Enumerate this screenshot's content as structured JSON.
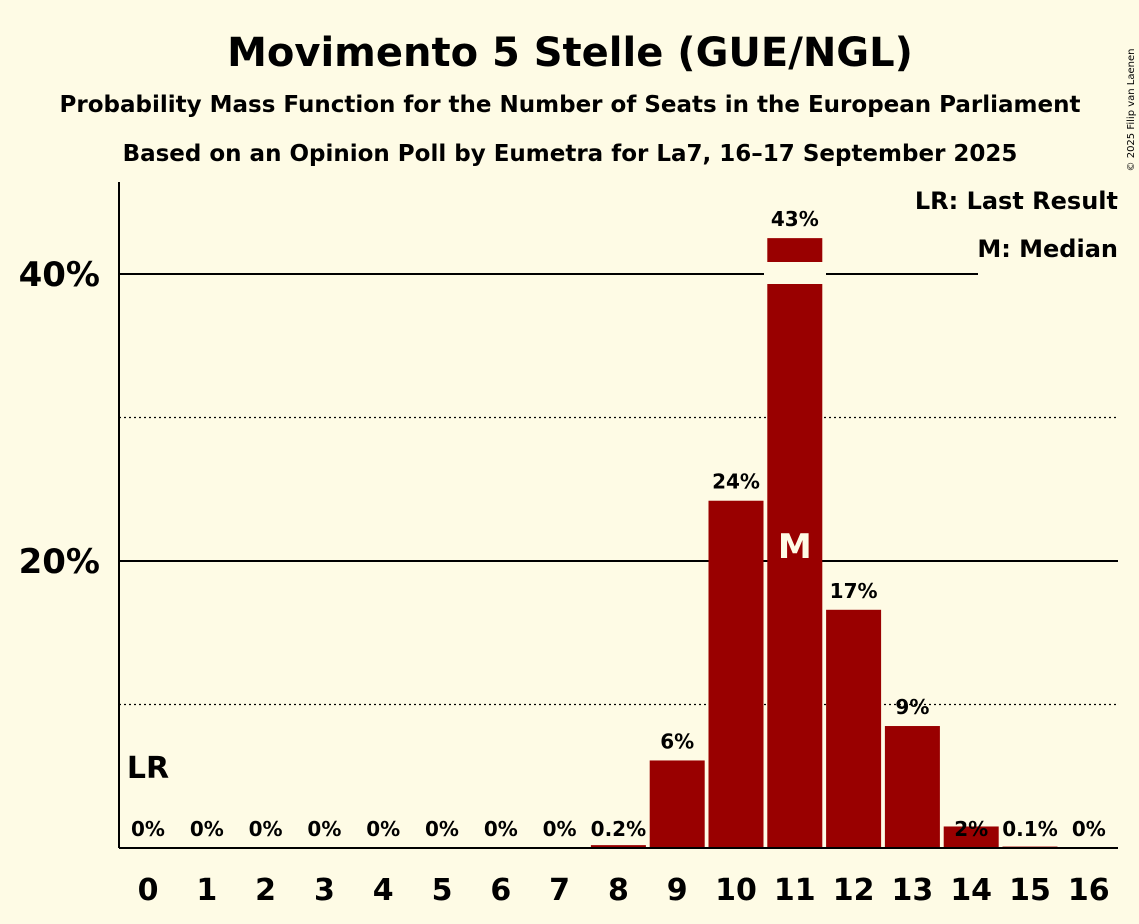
{
  "chart_data": {
    "type": "bar",
    "title": "Movimento 5 Stelle (GUE/NGL)",
    "subtitle": "Probability Mass Function for the Number of Seats in the European Parliament",
    "subtitle2": "Based on an Opinion Poll by Eumetra for La7, 16–17 September 2025",
    "copyright": "© 2025 Filip van Laenen",
    "xlabel": "",
    "ylabel": "",
    "ylim": [
      0,
      46.5
    ],
    "yticks": [
      {
        "value": 20,
        "label": "20%"
      },
      {
        "value": 40,
        "label": "40%"
      }
    ],
    "dotted_gridlines": [
      10,
      30
    ],
    "categories": [
      "0",
      "1",
      "2",
      "3",
      "4",
      "5",
      "6",
      "7",
      "8",
      "9",
      "10",
      "11",
      "12",
      "13",
      "14",
      "15",
      "16"
    ],
    "values": [
      0,
      0,
      0,
      0,
      0,
      0,
      0,
      0,
      0.2,
      6.1,
      24.2,
      42.5,
      16.6,
      8.5,
      1.5,
      0.1,
      0
    ],
    "value_labels": [
      "0%",
      "0%",
      "0%",
      "0%",
      "0%",
      "0%",
      "0%",
      "0%",
      "0.2%",
      "6%",
      "24%",
      "43%",
      "17%",
      "9%",
      "2%",
      "0.1%",
      "0%"
    ],
    "bar_color": "#990000",
    "last_result_index": 0,
    "last_result_label": "LR",
    "median_index": 11,
    "median_label": "M",
    "legend": {
      "position": "top-right",
      "lines": [
        "LR: Last Result",
        "M: Median"
      ]
    }
  }
}
